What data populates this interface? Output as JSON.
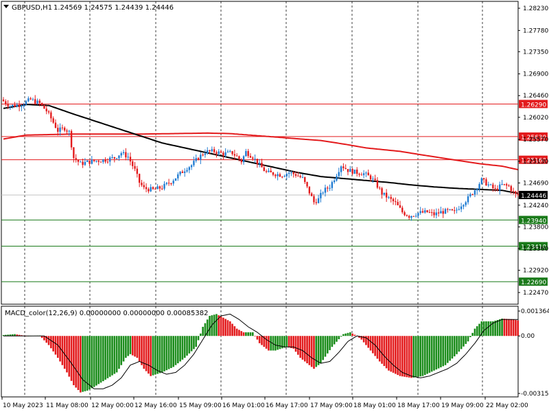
{
  "header": {
    "symbol": "GBPUSD,H1",
    "ohlc": "1.24569 1.24575 1.24439 1.24446"
  },
  "macd_header": "MACD_color(12,26,9) 0.00000000 0.00000000 0.00085382",
  "colors": {
    "background": "#ffffff",
    "bull": "#1e7bd2",
    "bear": "#e31a1c",
    "ma_slow": "#e31a1c",
    "ma_fast": "#000000",
    "resistance": "#e31a1c",
    "support": "#1a7a1a",
    "hist_pos": "#1a8c1a",
    "hist_neg": "#e31a1c"
  },
  "chart_data": [
    {
      "type": "candlestick",
      "title": "GBPUSD,H1",
      "price_ticks": [
        "1.28230",
        "1.27780",
        "1.27350",
        "1.26900",
        "1.26460",
        "1.26020",
        "1.25570",
        "1.25130",
        "1.24690",
        "1.24240",
        "1.23800",
        "1.23360",
        "1.22920",
        "1.22470"
      ],
      "ylim": [
        1.2247,
        1.2823
      ],
      "time_labels": [
        "10 May 2023",
        "11 May 08:00",
        "12 May 00:00",
        "12 May 16:00",
        "15 May 09:00",
        "16 May 01:00",
        "16 May 17:00",
        "17 May 09:00",
        "18 May 01:00",
        "18 May 17:00",
        "19 May 09:00",
        "22 May 02:00"
      ],
      "grid": true,
      "price_path": [
        [
          0,
          1.2638
        ],
        [
          4,
          1.2625
        ],
        [
          9,
          1.2628
        ],
        [
          13,
          1.2638
        ],
        [
          17,
          1.263
        ],
        [
          20,
          1.2615
        ],
        [
          22,
          1.26
        ],
        [
          25,
          1.2575
        ],
        [
          28,
          1.258
        ],
        [
          30,
          1.2572
        ],
        [
          32,
          1.252
        ],
        [
          35,
          1.2508
        ],
        [
          40,
          1.2513
        ],
        [
          46,
          1.2516
        ],
        [
          50,
          1.252
        ],
        [
          53,
          1.253
        ],
        [
          56,
          1.2522
        ],
        [
          59,
          1.2495
        ],
        [
          61,
          1.247
        ],
        [
          63,
          1.2458
        ],
        [
          67,
          1.2455
        ],
        [
          71,
          1.246
        ],
        [
          75,
          1.2472
        ],
        [
          79,
          1.2488
        ],
        [
          82,
          1.25
        ],
        [
          84,
          1.2505
        ],
        [
          87,
          1.252
        ],
        [
          90,
          1.2532
        ],
        [
          94,
          1.2533
        ],
        [
          98,
          1.2528
        ],
        [
          102,
          1.253
        ],
        [
          104,
          1.2522
        ],
        [
          106,
          1.2513
        ],
        [
          108,
          1.2532
        ],
        [
          111,
          1.2522
        ],
        [
          114,
          1.2505
        ],
        [
          117,
          1.249
        ],
        [
          120,
          1.2488
        ],
        [
          124,
          1.2485
        ],
        [
          127,
          1.249
        ],
        [
          130,
          1.2486
        ],
        [
          133,
          1.2478
        ],
        [
          136,
          1.245
        ],
        [
          138,
          1.243
        ],
        [
          140,
          1.2436
        ],
        [
          142,
          1.2452
        ],
        [
          145,
          1.2462
        ],
        [
          147,
          1.2478
        ],
        [
          150,
          1.2505
        ],
        [
          153,
          1.2495
        ],
        [
          156,
          1.2491
        ],
        [
          160,
          1.2488
        ],
        [
          163,
          1.248
        ],
        [
          165,
          1.247
        ],
        [
          168,
          1.2448
        ],
        [
          171,
          1.2438
        ],
        [
          174,
          1.2428
        ],
        [
          177,
          1.241
        ],
        [
          180,
          1.2402
        ],
        [
          184,
          1.2408
        ],
        [
          188,
          1.241
        ],
        [
          191,
          1.2405
        ],
        [
          194,
          1.241
        ],
        [
          197,
          1.2412
        ],
        [
          200,
          1.241
        ],
        [
          203,
          1.2425
        ],
        [
          206,
          1.2438
        ],
        [
          209,
          1.2455
        ],
        [
          212,
          1.2475
        ],
        [
          215,
          1.2465
        ],
        [
          218,
          1.2455
        ],
        [
          221,
          1.2465
        ],
        [
          224,
          1.2462
        ],
        [
          226,
          1.245
        ],
        [
          227,
          1.2445
        ]
      ],
      "ma_slow": [
        [
          0,
          1.2558
        ],
        [
          10,
          1.2566
        ],
        [
          30,
          1.2568
        ],
        [
          60,
          1.2568
        ],
        [
          90,
          1.257
        ],
        [
          100,
          1.2569
        ],
        [
          120,
          1.2562
        ],
        [
          140,
          1.2555
        ],
        [
          150,
          1.2548
        ],
        [
          160,
          1.254
        ],
        [
          175,
          1.2533
        ],
        [
          190,
          1.2522
        ],
        [
          200,
          1.2515
        ],
        [
          210,
          1.2508
        ],
        [
          220,
          1.2503
        ],
        [
          227,
          1.2496
        ]
      ],
      "ma_fast": [
        [
          0,
          1.262
        ],
        [
          10,
          1.2628
        ],
        [
          20,
          1.2626
        ],
        [
          30,
          1.261
        ],
        [
          40,
          1.2595
        ],
        [
          50,
          1.258
        ],
        [
          60,
          1.2565
        ],
        [
          70,
          1.255
        ],
        [
          80,
          1.254
        ],
        [
          90,
          1.253
        ],
        [
          100,
          1.252
        ],
        [
          110,
          1.251
        ],
        [
          120,
          1.25
        ],
        [
          130,
          1.249
        ],
        [
          140,
          1.2482
        ],
        [
          150,
          1.2478
        ],
        [
          160,
          1.2474
        ],
        [
          170,
          1.247
        ],
        [
          180,
          1.2465
        ],
        [
          190,
          1.2461
        ],
        [
          200,
          1.2458
        ],
        [
          210,
          1.2456
        ],
        [
          220,
          1.2454
        ],
        [
          227,
          1.2448
        ]
      ],
      "levels": [
        {
          "label": "1.26290",
          "kind": "resistance",
          "price": 1.2629
        },
        {
          "label": "1.25630",
          "kind": "resistance",
          "price": 1.2563
        },
        {
          "label": "1.25160",
          "kind": "resistance",
          "price": 1.2516
        },
        {
          "label": "1.23940",
          "kind": "support",
          "price": 1.2394
        },
        {
          "label": "1.23410",
          "kind": "support",
          "price": 1.2341
        },
        {
          "label": "1.22690",
          "kind": "support",
          "price": 1.2269
        }
      ],
      "current_price": "1.24446"
    },
    {
      "type": "histogram",
      "title": "MACD_color(12,26,9)",
      "ticks": [
        "0.0013643",
        "0.00",
        "-0.003154"
      ],
      "ylim": [
        -0.003154,
        0.0013643
      ],
      "macd_path": [
        [
          0,
          5e-05
        ],
        [
          5,
          0.0001
        ],
        [
          10,
          0.0
        ],
        [
          16,
          2e-05
        ],
        [
          20,
          -0.0005
        ],
        [
          24,
          -0.0012
        ],
        [
          28,
          -0.002
        ],
        [
          31,
          -0.0027
        ],
        [
          34,
          -0.0031
        ],
        [
          37,
          -0.003
        ],
        [
          40,
          -0.0028
        ],
        [
          45,
          -0.0024
        ],
        [
          50,
          -0.002
        ],
        [
          54,
          -0.0012
        ],
        [
          56,
          -0.001
        ],
        [
          59,
          -0.0012
        ],
        [
          62,
          -0.0018
        ],
        [
          65,
          -0.0022
        ],
        [
          70,
          -0.002
        ],
        [
          75,
          -0.0017
        ],
        [
          80,
          -0.0012
        ],
        [
          85,
          -0.0006
        ],
        [
          88,
          0.0005
        ],
        [
          91,
          0.0011
        ],
        [
          94,
          0.0012
        ],
        [
          97,
          0.001
        ],
        [
          100,
          0.0008
        ],
        [
          103,
          0.0004
        ],
        [
          106,
          0.0002
        ],
        [
          110,
          0.0002
        ],
        [
          113,
          -0.0004
        ],
        [
          117,
          -0.0008
        ],
        [
          120,
          -0.0008
        ],
        [
          125,
          -0.0006
        ],
        [
          128,
          -0.0007
        ],
        [
          131,
          -0.0012
        ],
        [
          135,
          -0.0016
        ],
        [
          137,
          -0.0018
        ],
        [
          140,
          -0.0015
        ],
        [
          145,
          -0.0006
        ],
        [
          150,
          0.0001
        ],
        [
          153,
          0.0002
        ],
        [
          156,
          0.0
        ],
        [
          158,
          -0.0002
        ],
        [
          162,
          -0.0008
        ],
        [
          166,
          -0.0014
        ],
        [
          170,
          -0.0019
        ],
        [
          175,
          -0.0022
        ],
        [
          180,
          -0.0023
        ],
        [
          185,
          -0.0022
        ],
        [
          190,
          -0.0019
        ],
        [
          195,
          -0.0016
        ],
        [
          200,
          -0.001
        ],
        [
          205,
          -0.0003
        ],
        [
          208,
          0.0004
        ],
        [
          211,
          0.0008
        ],
        [
          216,
          0.0008
        ],
        [
          220,
          0.00095
        ],
        [
          224,
          0.00092
        ],
        [
          227,
          0.00085
        ]
      ],
      "signal_path": [
        [
          0,
          0.0
        ],
        [
          18,
          0.0
        ],
        [
          24,
          -0.0005
        ],
        [
          30,
          -0.0015
        ],
        [
          35,
          -0.0024
        ],
        [
          40,
          -0.0029
        ],
        [
          44,
          -0.0029
        ],
        [
          48,
          -0.0027
        ],
        [
          52,
          -0.0023
        ],
        [
          56,
          -0.0016
        ],
        [
          60,
          -0.0014
        ],
        [
          64,
          -0.0016
        ],
        [
          68,
          -0.0019
        ],
        [
          72,
          -0.0021
        ],
        [
          76,
          -0.002
        ],
        [
          80,
          -0.0016
        ],
        [
          84,
          -0.001
        ],
        [
          88,
          -0.0002
        ],
        [
          92,
          0.0006
        ],
        [
          96,
          0.0011
        ],
        [
          100,
          0.0012
        ],
        [
          104,
          0.0009
        ],
        [
          108,
          0.0005
        ],
        [
          112,
          0.0002
        ],
        [
          116,
          -0.0002
        ],
        [
          120,
          -0.0005
        ],
        [
          124,
          -0.0006
        ],
        [
          128,
          -0.0006
        ],
        [
          132,
          -0.0008
        ],
        [
          136,
          -0.0012
        ],
        [
          140,
          -0.0015
        ],
        [
          144,
          -0.0014
        ],
        [
          148,
          -0.0009
        ],
        [
          152,
          -0.0003
        ],
        [
          156,
          0.0
        ],
        [
          160,
          -0.0001
        ],
        [
          164,
          -0.0005
        ],
        [
          168,
          -0.0011
        ],
        [
          172,
          -0.0016
        ],
        [
          176,
          -0.002
        ],
        [
          180,
          -0.0022
        ],
        [
          184,
          -0.0023
        ],
        [
          188,
          -0.0022
        ],
        [
          192,
          -0.002
        ],
        [
          196,
          -0.0018
        ],
        [
          200,
          -0.0015
        ],
        [
          204,
          -0.001
        ],
        [
          208,
          -0.0004
        ],
        [
          212,
          0.0003
        ],
        [
          216,
          0.0007
        ],
        [
          220,
          0.0009
        ],
        [
          224,
          0.0009
        ],
        [
          227,
          0.0009
        ]
      ]
    }
  ]
}
